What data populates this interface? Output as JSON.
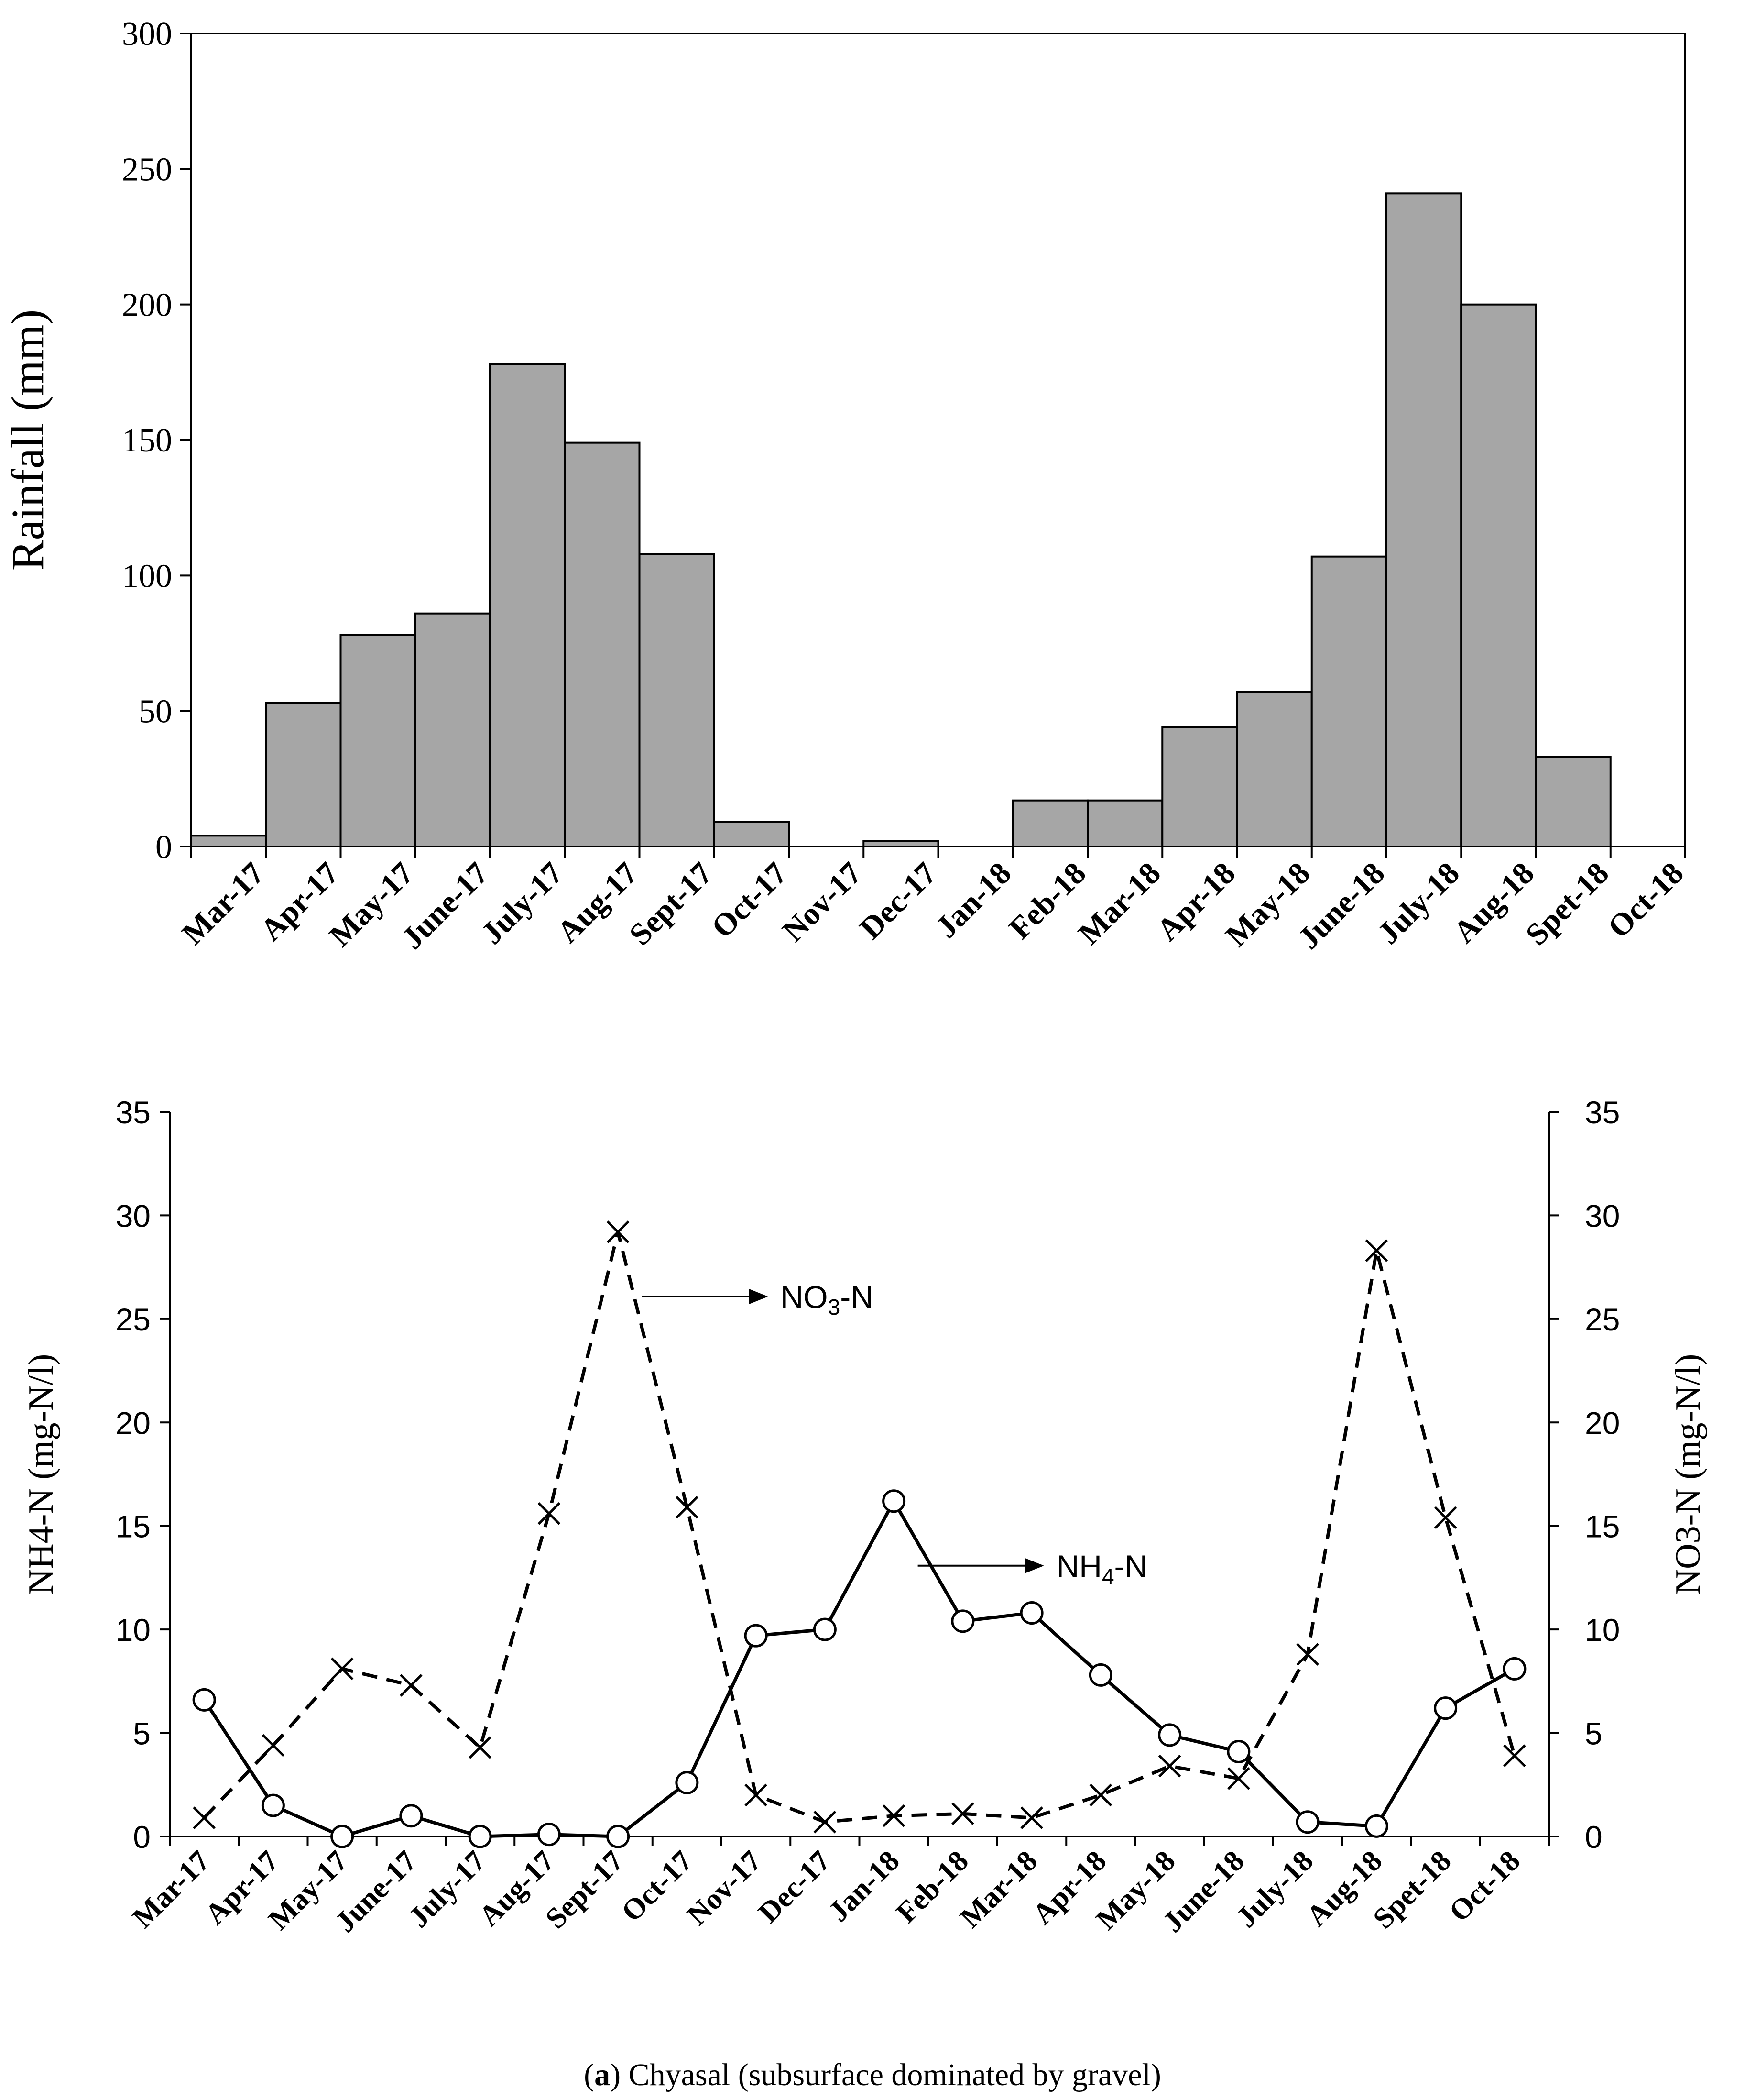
{
  "chart_data": [
    {
      "type": "bar",
      "title": "",
      "xlabel": "",
      "ylabel": "Rainfall (mm)",
      "ylim": [
        0,
        300
      ],
      "yticks": [
        0,
        50,
        100,
        150,
        200,
        250,
        300
      ],
      "grid": false,
      "categories": [
        "Mar-17",
        "Apr-17",
        "May-17",
        "June-17",
        "July-17",
        "Aug-17",
        "Sept-17",
        "Oct-17",
        "Nov-17",
        "Dec-17",
        "Jan-18",
        "Feb-18",
        "Mar-18",
        "Apr-18",
        "May-18",
        "June-18",
        "July-18",
        "Aug-18",
        "Spet-18",
        "Oct-18"
      ],
      "series": [
        {
          "name": "Rainfall",
          "color": "#a6a6a6",
          "values": [
            4,
            53,
            78,
            86,
            178,
            149,
            108,
            9,
            0,
            2,
            0,
            17,
            17,
            44,
            57,
            107,
            241,
            200,
            33,
            0
          ]
        }
      ]
    },
    {
      "type": "line",
      "title": "",
      "xlabel": "",
      "ylabel": "NH4-N (mg-N/l)",
      "ylabel_right": "NO3-N (mg-N/l)",
      "ylim": [
        0,
        35
      ],
      "ylim_right": [
        0,
        35
      ],
      "yticks": [
        0,
        5,
        10,
        15,
        20,
        25,
        30,
        35
      ],
      "grid": false,
      "categories": [
        "Mar-17",
        "Apr-17",
        "May-17",
        "June-17",
        "July-17",
        "Aug-17",
        "Sept-17",
        "Oct-17",
        "Nov-17",
        "Dec-17",
        "Jan-18",
        "Feb-18",
        "Mar-18",
        "Apr-18",
        "May-18",
        "June-18",
        "July-18",
        "Aug-18",
        "Spet-18",
        "Oct-18"
      ],
      "series": [
        {
          "name": "NH4-N",
          "label_main": "NH",
          "label_sub": "4",
          "label_tail": "-N",
          "style": "solid",
          "marker": "circle",
          "axis": "left",
          "values": [
            6.6,
            1.5,
            0.0,
            1.0,
            0.0,
            0.1,
            0.0,
            2.6,
            9.7,
            10.0,
            16.2,
            10.4,
            10.8,
            7.8,
            4.9,
            4.1,
            0.7,
            0.5,
            6.2,
            8.1
          ]
        },
        {
          "name": "NO3-N",
          "label_main": "NO",
          "label_sub": "3",
          "label_tail": "-N",
          "style": "dashed",
          "marker": "x",
          "axis": "right",
          "values": [
            0.9,
            4.4,
            8.1,
            7.3,
            4.3,
            15.6,
            29.2,
            15.9,
            2.0,
            0.7,
            1.0,
            1.1,
            0.9,
            2.0,
            3.4,
            2.8,
            8.8,
            28.3,
            15.4,
            3.9
          ]
        }
      ],
      "annotations": [
        {
          "series": "NO3-N",
          "anchor_index": 6
        },
        {
          "series": "NH4-N",
          "anchor_index": 10
        }
      ]
    }
  ],
  "caption": {
    "prefix": "(",
    "letter": "a",
    "text": ") Chyasal (subsurface dominated by gravel)"
  }
}
